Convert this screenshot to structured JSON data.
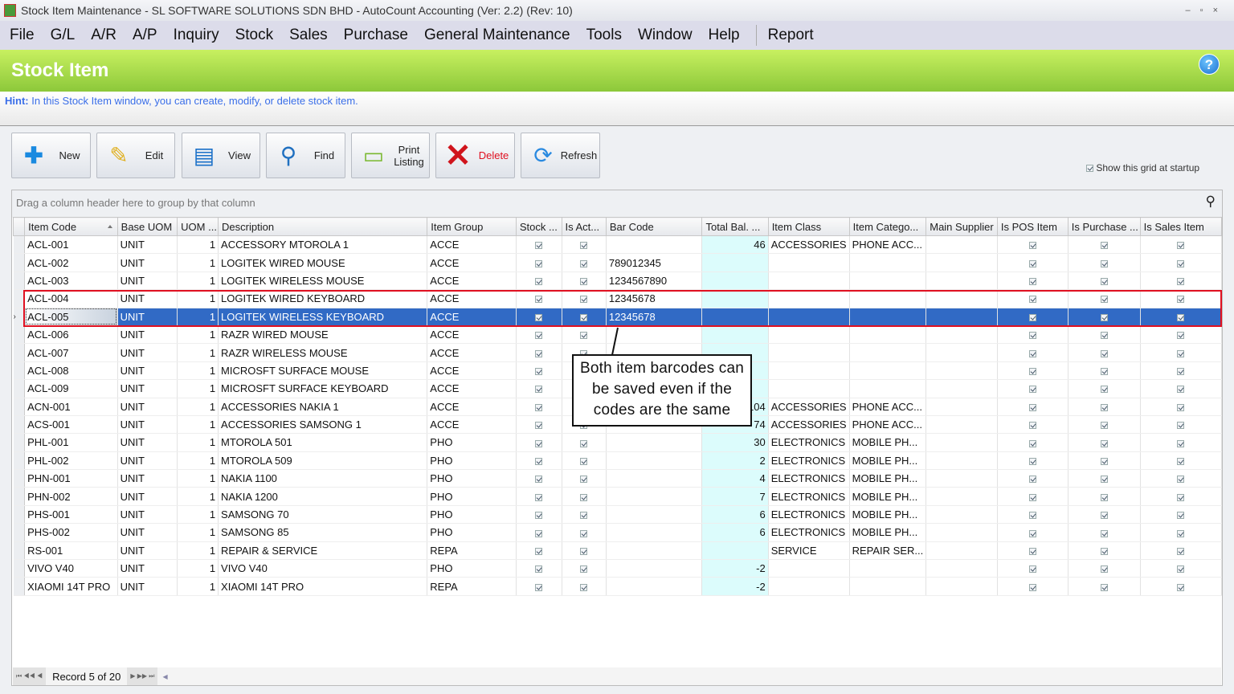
{
  "window": {
    "title": "Stock Item Maintenance - SL SOFTWARE SOLUTIONS SDN BHD - AutoCount Accounting (Ver: 2.2) (Rev: 10)"
  },
  "menu": [
    "File",
    "G/L",
    "A/R",
    "A/P",
    "Inquiry",
    "Stock",
    "Sales",
    "Purchase",
    "General Maintenance",
    "Tools",
    "Window",
    "Help"
  ],
  "menu_extra": "Report",
  "banner": {
    "title": "Stock Item",
    "help": "?"
  },
  "hint": {
    "label": "Hint:",
    "text": "In this Stock Item window, you can create, modify, or delete stock item."
  },
  "toolbar": {
    "new": "New",
    "edit": "Edit",
    "view": "View",
    "find": "Find",
    "print": "Print Listing",
    "delete": "Delete",
    "refresh": "Refresh",
    "show_grid": "Show this grid at startup"
  },
  "grid": {
    "group_hint": "Drag a column header here to group by that column",
    "columns": [
      "Item Code",
      "Base UOM",
      "UOM ...",
      "Description",
      "Item Group",
      "Stock ...",
      "Is Act...",
      "Bar Code",
      "Total Bal. ...",
      "Item Class",
      "Item Catego...",
      "Main Supplier",
      "Is POS Item",
      "Is Purchase ...",
      "Is Sales Item"
    ],
    "sorted_column": "Item Code",
    "selected_index": 4,
    "rows": [
      [
        "ACL-001",
        "UNIT",
        "1",
        "ACCESSORY MTOROLA 1",
        "ACCE",
        "",
        "46",
        "ACCESSORIES",
        "PHONE ACC...",
        ""
      ],
      [
        "ACL-002",
        "UNIT",
        "1",
        "LOGITEK WIRED MOUSE",
        "ACCE",
        "789012345",
        "",
        "",
        "",
        ""
      ],
      [
        "ACL-003",
        "UNIT",
        "1",
        "LOGITEK WIRELESS MOUSE",
        "ACCE",
        "1234567890",
        "",
        "",
        "",
        ""
      ],
      [
        "ACL-004",
        "UNIT",
        "1",
        "LOGITEK WIRED KEYBOARD",
        "ACCE",
        "12345678",
        "",
        "",
        "",
        ""
      ],
      [
        "ACL-005",
        "UNIT",
        "1",
        "LOGITEK WIRELESS KEYBOARD",
        "ACCE",
        "12345678",
        "",
        "",
        "",
        ""
      ],
      [
        "ACL-006",
        "UNIT",
        "1",
        "RAZR WIRED MOUSE",
        "ACCE",
        "",
        "",
        "",
        "",
        ""
      ],
      [
        "ACL-007",
        "UNIT",
        "1",
        "RAZR WIRELESS MOUSE",
        "ACCE",
        "",
        "",
        "",
        "",
        ""
      ],
      [
        "ACL-008",
        "UNIT",
        "1",
        "MICROSFT SURFACE MOUSE",
        "ACCE",
        "",
        "",
        "",
        "",
        ""
      ],
      [
        "ACL-009",
        "UNIT",
        "1",
        "MICROSFT SURFACE KEYBOARD",
        "ACCE",
        "",
        "",
        "",
        "",
        ""
      ],
      [
        "ACN-001",
        "UNIT",
        "1",
        "ACCESSORIES NAKIA 1",
        "ACCE",
        "",
        "104",
        "ACCESSORIES",
        "PHONE ACC...",
        ""
      ],
      [
        "ACS-001",
        "UNIT",
        "1",
        "ACCESSORIES SAMSONG 1",
        "ACCE",
        "",
        "74",
        "ACCESSORIES",
        "PHONE ACC...",
        ""
      ],
      [
        "PHL-001",
        "UNIT",
        "1",
        "MTOROLA 501",
        "PHO",
        "",
        "30",
        "ELECTRONICS",
        "MOBILE PH...",
        ""
      ],
      [
        "PHL-002",
        "UNIT",
        "1",
        "MTOROLA 509",
        "PHO",
        "",
        "2",
        "ELECTRONICS",
        "MOBILE PH...",
        ""
      ],
      [
        "PHN-001",
        "UNIT",
        "1",
        "NAKIA 1100",
        "PHO",
        "",
        "4",
        "ELECTRONICS",
        "MOBILE PH...",
        ""
      ],
      [
        "PHN-002",
        "UNIT",
        "1",
        "NAKIA 1200",
        "PHO",
        "",
        "7",
        "ELECTRONICS",
        "MOBILE PH...",
        ""
      ],
      [
        "PHS-001",
        "UNIT",
        "1",
        "SAMSONG 70",
        "PHO",
        "",
        "6",
        "ELECTRONICS",
        "MOBILE PH...",
        ""
      ],
      [
        "PHS-002",
        "UNIT",
        "1",
        "SAMSONG 85",
        "PHO",
        "",
        "6",
        "ELECTRONICS",
        "MOBILE PH...",
        ""
      ],
      [
        "RS-001",
        "UNIT",
        "1",
        "REPAIR & SERVICE",
        "REPA",
        "",
        "",
        "SERVICE",
        "REPAIR SER...",
        ""
      ],
      [
        "VIVO V40",
        "UNIT",
        "1",
        "VIVO V40",
        "PHO",
        "",
        "-2",
        "",
        "",
        ""
      ],
      [
        "XIAOMI 14T PRO",
        "UNIT",
        "1",
        "XIAOMI 14T PRO",
        "REPA",
        "",
        "-2",
        "",
        "",
        ""
      ]
    ],
    "navigator": "Record 5 of 20"
  },
  "annotation": {
    "text": "Both item barcodes can be saved even if the codes are the same",
    "color": "#e01020"
  }
}
